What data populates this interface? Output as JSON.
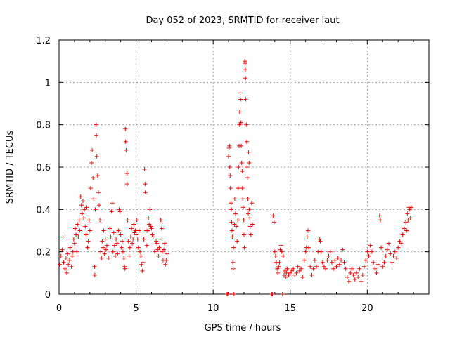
{
  "chart_data": {
    "type": "scatter",
    "title": "Day 052 of 2023, SRMTID for receiver laut",
    "xlabel": "GPS time / hours",
    "ylabel": "SRMTID / TECUs",
    "xlim": [
      0,
      24
    ],
    "ylim": [
      0,
      1.2
    ],
    "xticks": [
      0,
      5,
      10,
      15,
      20
    ],
    "xtick_labels": [
      "0",
      "5",
      "10",
      "15",
      "20"
    ],
    "yticks": [
      0,
      0.2,
      0.4,
      0.6,
      0.8,
      1.0,
      1.2
    ],
    "ytick_labels": [
      "0",
      "0.2",
      "0.4",
      "0.6",
      "0.8",
      "1",
      "1.2"
    ],
    "grid": true,
    "marker": "+",
    "color": "#ff0000",
    "series": [
      {
        "name": "SRMTID",
        "points": [
          [
            0.05,
            0.14
          ],
          [
            0.12,
            0.18
          ],
          [
            0.2,
            0.21
          ],
          [
            0.25,
            0.27
          ],
          [
            0.3,
            0.15
          ],
          [
            0.38,
            0.12
          ],
          [
            0.45,
            0.17
          ],
          [
            0.5,
            0.1
          ],
          [
            0.55,
            0.19
          ],
          [
            0.6,
            0.14
          ],
          [
            0.68,
            0.16
          ],
          [
            0.72,
            0.22
          ],
          [
            0.8,
            0.13
          ],
          [
            0.85,
            0.18
          ],
          [
            0.9,
            0.2
          ],
          [
            0.95,
            0.26
          ],
          [
            1.0,
            0.24
          ],
          [
            1.05,
            0.31
          ],
          [
            1.1,
            0.28
          ],
          [
            1.15,
            0.2
          ],
          [
            1.2,
            0.33
          ],
          [
            1.25,
            0.27
          ],
          [
            1.3,
            0.35
          ],
          [
            1.35,
            0.3
          ],
          [
            1.4,
            0.46
          ],
          [
            1.45,
            0.42
          ],
          [
            1.5,
            0.38
          ],
          [
            1.55,
            0.44
          ],
          [
            1.6,
            0.36
          ],
          [
            1.65,
            0.4
          ],
          [
            1.7,
            0.32
          ],
          [
            1.75,
            0.28
          ],
          [
            1.8,
            0.41
          ],
          [
            1.85,
            0.22
          ],
          [
            1.9,
            0.25
          ],
          [
            1.95,
            0.35
          ],
          [
            2.0,
            0.3
          ],
          [
            2.05,
            0.5
          ],
          [
            2.1,
            0.62
          ],
          [
            2.15,
            0.68
          ],
          [
            2.2,
            0.55
          ],
          [
            2.25,
            0.45
          ],
          [
            2.3,
            0.13
          ],
          [
            2.32,
            0.09
          ],
          [
            2.35,
            0.4
          ],
          [
            2.4,
            0.8
          ],
          [
            2.42,
            0.75
          ],
          [
            2.45,
            0.65
          ],
          [
            2.5,
            0.56
          ],
          [
            2.55,
            0.48
          ],
          [
            2.6,
            0.42
          ],
          [
            2.65,
            0.35
          ],
          [
            2.7,
            0.2
          ],
          [
            2.75,
            0.17
          ],
          [
            2.8,
            0.25
          ],
          [
            2.85,
            0.22
          ],
          [
            2.9,
            0.3
          ],
          [
            2.95,
            0.19
          ],
          [
            3.0,
            0.26
          ],
          [
            3.05,
            0.21
          ],
          [
            3.1,
            0.23
          ],
          [
            3.2,
            0.17
          ],
          [
            3.3,
            0.31
          ],
          [
            3.35,
            0.27
          ],
          [
            3.4,
            0.39
          ],
          [
            3.45,
            0.43
          ],
          [
            3.5,
            0.2
          ],
          [
            3.55,
            0.29
          ],
          [
            3.6,
            0.23
          ],
          [
            3.65,
            0.18
          ],
          [
            3.7,
            0.26
          ],
          [
            3.75,
            0.24
          ],
          [
            3.8,
            0.19
          ],
          [
            3.85,
            0.3
          ],
          [
            3.9,
            0.4
          ],
          [
            3.95,
            0.39
          ],
          [
            4.0,
            0.28
          ],
          [
            4.05,
            0.22
          ],
          [
            4.1,
            0.25
          ],
          [
            4.15,
            0.2
          ],
          [
            4.2,
            0.17
          ],
          [
            4.25,
            0.13
          ],
          [
            4.28,
            0.12
          ],
          [
            4.3,
            0.78
          ],
          [
            4.32,
            0.72
          ],
          [
            4.35,
            0.68
          ],
          [
            4.4,
            0.57
          ],
          [
            4.42,
            0.52
          ],
          [
            4.45,
            0.35
          ],
          [
            4.5,
            0.25
          ],
          [
            4.55,
            0.18
          ],
          [
            4.6,
            0.22
          ],
          [
            4.65,
            0.27
          ],
          [
            4.7,
            0.31
          ],
          [
            4.75,
            0.24
          ],
          [
            4.8,
            0.26
          ],
          [
            4.85,
            0.33
          ],
          [
            4.9,
            0.29
          ],
          [
            4.95,
            0.3
          ],
          [
            5.0,
            0.28
          ],
          [
            5.05,
            0.35
          ],
          [
            5.1,
            0.26
          ],
          [
            5.15,
            0.22
          ],
          [
            5.2,
            0.3
          ],
          [
            5.25,
            0.2
          ],
          [
            5.3,
            0.18
          ],
          [
            5.35,
            0.14
          ],
          [
            5.4,
            0.11
          ],
          [
            5.45,
            0.15
          ],
          [
            5.5,
            0.26
          ],
          [
            5.55,
            0.59
          ],
          [
            5.58,
            0.52
          ],
          [
            5.6,
            0.48
          ],
          [
            5.65,
            0.3
          ],
          [
            5.7,
            0.23
          ],
          [
            5.75,
            0.3
          ],
          [
            5.8,
            0.36
          ],
          [
            5.85,
            0.33
          ],
          [
            5.9,
            0.4
          ],
          [
            5.95,
            0.32
          ],
          [
            6.0,
            0.31
          ],
          [
            6.05,
            0.28
          ],
          [
            6.1,
            0.27
          ],
          [
            6.2,
            0.2
          ],
          [
            6.3,
            0.25
          ],
          [
            6.35,
            0.24
          ],
          [
            6.4,
            0.21
          ],
          [
            6.45,
            0.18
          ],
          [
            6.5,
            0.22
          ],
          [
            6.55,
            0.26
          ],
          [
            6.6,
            0.35
          ],
          [
            6.65,
            0.31
          ],
          [
            6.7,
            0.2
          ],
          [
            6.75,
            0.16
          ],
          [
            6.8,
            0.21
          ],
          [
            6.85,
            0.24
          ],
          [
            6.9,
            0.14
          ],
          [
            6.95,
            0.16
          ],
          [
            7.0,
            0.19
          ],
          [
            10.9,
            0.0
          ],
          [
            10.95,
            0.0
          ],
          [
            11.0,
            0.65
          ],
          [
            11.03,
            0.69
          ],
          [
            11.05,
            0.7
          ],
          [
            11.08,
            0.6
          ],
          [
            11.1,
            0.56
          ],
          [
            11.12,
            0.5
          ],
          [
            11.15,
            0.43
          ],
          [
            11.18,
            0.4
          ],
          [
            11.2,
            0.34
          ],
          [
            11.22,
            0.3
          ],
          [
            11.25,
            0.27
          ],
          [
            11.28,
            0.15
          ],
          [
            11.3,
            0.12
          ],
          [
            11.32,
            0.22
          ],
          [
            11.35,
            0.0
          ],
          [
            11.38,
            0.33
          ],
          [
            11.4,
            0.45
          ],
          [
            11.45,
            0.38
          ],
          [
            11.5,
            0.32
          ],
          [
            11.55,
            0.25
          ],
          [
            11.6,
            0.35
          ],
          [
            11.62,
            0.5
          ],
          [
            11.65,
            0.6
          ],
          [
            11.68,
            0.7
          ],
          [
            11.7,
            0.8
          ],
          [
            11.72,
            0.86
          ],
          [
            11.75,
            0.95
          ],
          [
            11.78,
            0.92
          ],
          [
            11.8,
            0.81
          ],
          [
            11.82,
            0.7
          ],
          [
            11.85,
            0.62
          ],
          [
            11.88,
            0.58
          ],
          [
            11.9,
            0.5
          ],
          [
            11.92,
            0.45
          ],
          [
            11.95,
            0.41
          ],
          [
            11.98,
            0.35
          ],
          [
            12.0,
            0.28
          ],
          [
            12.02,
            0.22
          ],
          [
            12.05,
            1.1
          ],
          [
            12.07,
            1.09
          ],
          [
            12.09,
            1.06
          ],
          [
            12.1,
            1.02
          ],
          [
            12.12,
            0.92
          ],
          [
            12.15,
            0.8
          ],
          [
            12.18,
            0.72
          ],
          [
            12.2,
            0.6
          ],
          [
            12.22,
            0.55
          ],
          [
            12.25,
            0.45
          ],
          [
            12.28,
            0.38
          ],
          [
            12.3,
            0.67
          ],
          [
            12.33,
            0.62
          ],
          [
            12.35,
            0.4
          ],
          [
            12.38,
            0.36
          ],
          [
            12.4,
            0.32
          ],
          [
            12.45,
            0.28
          ],
          [
            12.5,
            0.43
          ],
          [
            12.55,
            0.33
          ],
          [
            13.8,
            0.0
          ],
          [
            13.85,
            0.0
          ],
          [
            13.9,
            0.37
          ],
          [
            13.95,
            0.34
          ],
          [
            14.0,
            0.2
          ],
          [
            14.05,
            0.18
          ],
          [
            14.1,
            0.15
          ],
          [
            14.15,
            0.12
          ],
          [
            14.2,
            0.1
          ],
          [
            14.25,
            0.13
          ],
          [
            14.3,
            0.15
          ],
          [
            14.35,
            0.21
          ],
          [
            14.4,
            0.23
          ],
          [
            14.45,
            0.2
          ],
          [
            14.5,
            0.0
          ],
          [
            14.55,
            0.18
          ],
          [
            14.6,
            0.09
          ],
          [
            14.65,
            0.11
          ],
          [
            14.7,
            0.08
          ],
          [
            14.75,
            0.1
          ],
          [
            14.8,
            0.12
          ],
          [
            14.9,
            0.09
          ],
          [
            15.0,
            0.1
          ],
          [
            15.1,
            0.11
          ],
          [
            15.2,
            0.12
          ],
          [
            15.3,
            0.09
          ],
          [
            15.4,
            0.1
          ],
          [
            15.5,
            0.13
          ],
          [
            15.6,
            0.11
          ],
          [
            15.7,
            0.12
          ],
          [
            15.8,
            0.08
          ],
          [
            15.9,
            0.16
          ],
          [
            16.0,
            0.2
          ],
          [
            16.05,
            0.22
          ],
          [
            16.1,
            0.27
          ],
          [
            16.15,
            0.3
          ],
          [
            16.2,
            0.22
          ],
          [
            16.3,
            0.13
          ],
          [
            16.4,
            0.09
          ],
          [
            16.5,
            0.12
          ],
          [
            16.6,
            0.16
          ],
          [
            16.7,
            0.13
          ],
          [
            16.8,
            0.2
          ],
          [
            16.9,
            0.26
          ],
          [
            16.95,
            0.25
          ],
          [
            17.0,
            0.2
          ],
          [
            17.1,
            0.15
          ],
          [
            17.2,
            0.13
          ],
          [
            17.3,
            0.12
          ],
          [
            17.4,
            0.16
          ],
          [
            17.5,
            0.18
          ],
          [
            17.6,
            0.2
          ],
          [
            17.7,
            0.15
          ],
          [
            17.8,
            0.12
          ],
          [
            17.9,
            0.16
          ],
          [
            18.0,
            0.13
          ],
          [
            18.1,
            0.17
          ],
          [
            18.2,
            0.14
          ],
          [
            18.3,
            0.16
          ],
          [
            18.4,
            0.21
          ],
          [
            18.5,
            0.15
          ],
          [
            18.6,
            0.12
          ],
          [
            18.7,
            0.08
          ],
          [
            18.8,
            0.06
          ],
          [
            18.9,
            0.1
          ],
          [
            19.0,
            0.12
          ],
          [
            19.1,
            0.09
          ],
          [
            19.2,
            0.07
          ],
          [
            19.3,
            0.1
          ],
          [
            19.4,
            0.08
          ],
          [
            19.5,
            0.12
          ],
          [
            19.6,
            0.06
          ],
          [
            19.7,
            0.09
          ],
          [
            19.8,
            0.13
          ],
          [
            19.9,
            0.16
          ],
          [
            20.0,
            0.2
          ],
          [
            20.1,
            0.18
          ],
          [
            20.2,
            0.23
          ],
          [
            20.3,
            0.2
          ],
          [
            20.4,
            0.15
          ],
          [
            20.5,
            0.12
          ],
          [
            20.6,
            0.1
          ],
          [
            20.7,
            0.14
          ],
          [
            20.8,
            0.37
          ],
          [
            20.85,
            0.35
          ],
          [
            20.9,
            0.22
          ],
          [
            21.0,
            0.13
          ],
          [
            21.1,
            0.15
          ],
          [
            21.2,
            0.18
          ],
          [
            21.3,
            0.21
          ],
          [
            21.4,
            0.24
          ],
          [
            21.5,
            0.19
          ],
          [
            21.6,
            0.15
          ],
          [
            21.7,
            0.18
          ],
          [
            21.8,
            0.2
          ],
          [
            21.9,
            0.17
          ],
          [
            22.0,
            0.22
          ],
          [
            22.1,
            0.25
          ],
          [
            22.2,
            0.24
          ],
          [
            22.3,
            0.28
          ],
          [
            22.4,
            0.31
          ],
          [
            22.5,
            0.34
          ],
          [
            22.55,
            0.3
          ],
          [
            22.6,
            0.38
          ],
          [
            22.65,
            0.35
          ],
          [
            22.7,
            0.41
          ],
          [
            22.75,
            0.4
          ],
          [
            22.8,
            0.36
          ],
          [
            22.85,
            0.41
          ]
        ]
      }
    ]
  }
}
